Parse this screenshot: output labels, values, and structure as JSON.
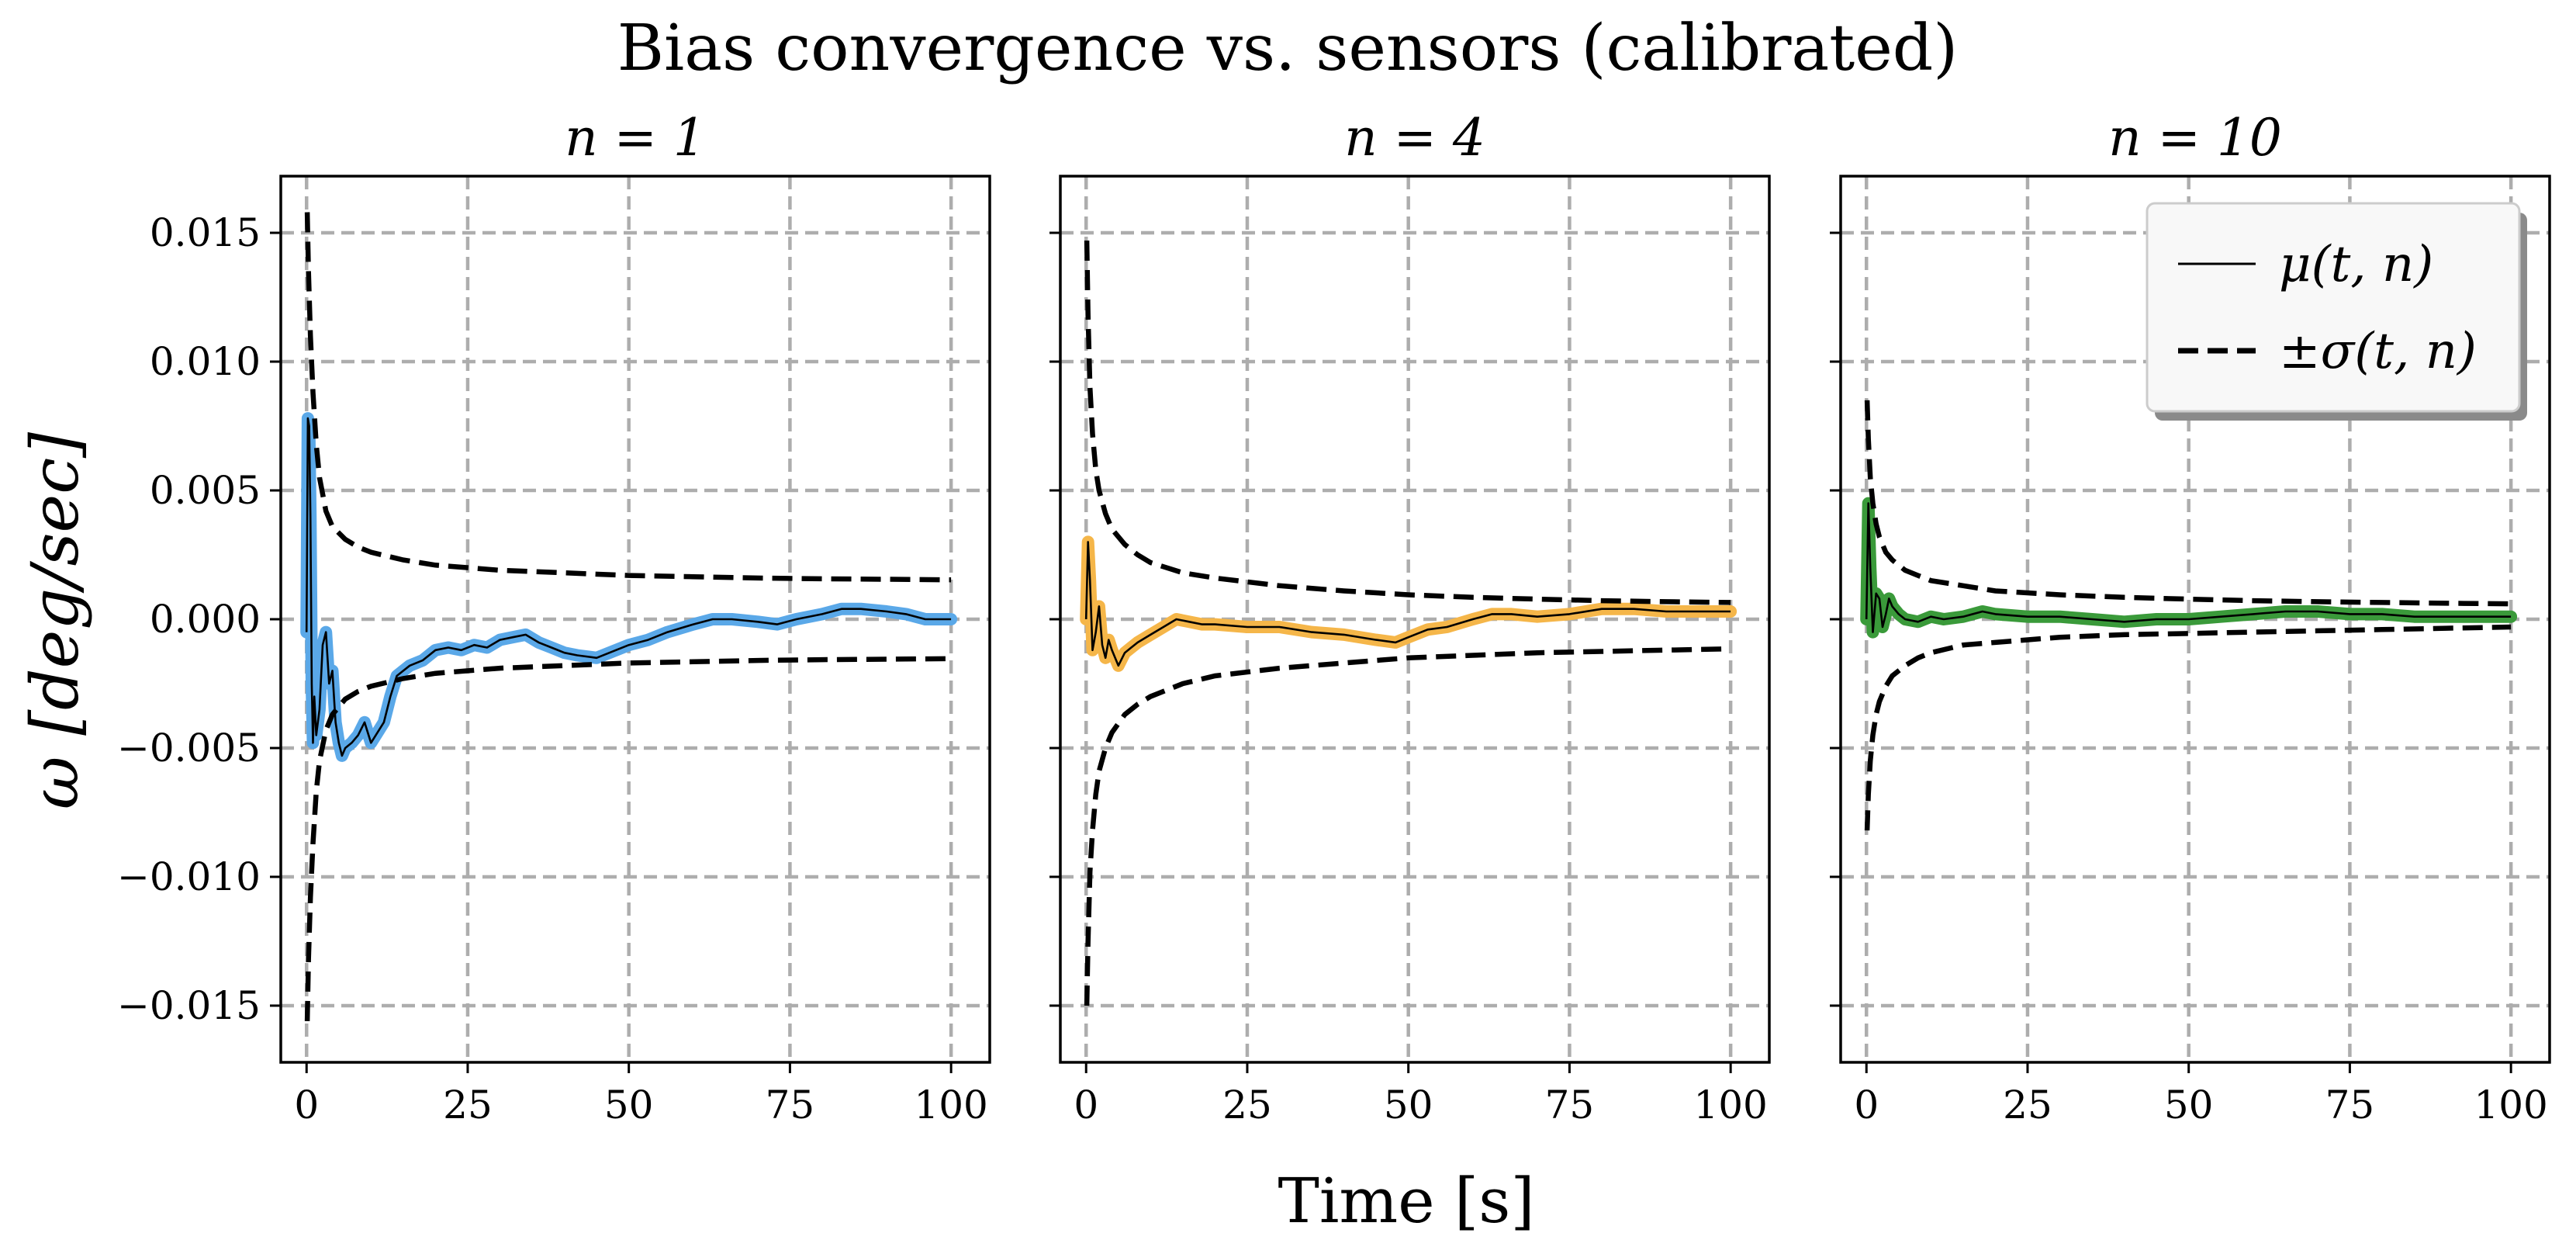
{
  "title": "Bias convergence vs. sensors (calibrated)",
  "xlabel": "Time [s]",
  "ylabel": "ω [deg/sec]",
  "legend": {
    "placement": "top-right of third panel",
    "entries": [
      {
        "label": "μ(t, n)",
        "style": "solid"
      },
      {
        "label": "±σ(t, n)",
        "style": "dashed"
      }
    ]
  },
  "x_tick_labels": [
    "0",
    "25",
    "50",
    "75",
    "100"
  ],
  "y_tick_labels": [
    "0.015",
    "0.010",
    "0.005",
    "0.000",
    "−0.005",
    "−0.010",
    "−0.015"
  ],
  "chart_data": [
    {
      "type": "line",
      "title": "n = 1",
      "color": "#5aa8e8",
      "xlim": [
        -4,
        106
      ],
      "ylim": [
        -0.0172,
        0.0172
      ],
      "x_ticks": [
        0,
        25,
        50,
        75,
        100
      ],
      "y_ticks": [
        0.015,
        0.01,
        0.005,
        0.0,
        -0.005,
        -0.01,
        -0.015
      ],
      "grid": true,
      "sigma": {
        "x": [
          0.1,
          0.3,
          0.6,
          1,
          1.5,
          2,
          3,
          4,
          6,
          8,
          10,
          15,
          20,
          30,
          40,
          50,
          60,
          70,
          80,
          90,
          100
        ],
        "upper": [
          0.0158,
          0.0135,
          0.011,
          0.0088,
          0.0068,
          0.0055,
          0.0042,
          0.0036,
          0.0031,
          0.0028,
          0.0026,
          0.0023,
          0.0021,
          0.0019,
          0.0018,
          0.0017,
          0.00165,
          0.0016,
          0.00157,
          0.00155,
          0.00153
        ],
        "lower": [
          -0.0156,
          -0.0132,
          -0.0108,
          -0.0087,
          -0.0067,
          -0.0055,
          -0.0043,
          -0.0037,
          -0.0031,
          -0.0028,
          -0.0026,
          -0.0023,
          -0.0021,
          -0.0019,
          -0.0018,
          -0.0017,
          -0.00165,
          -0.0016,
          -0.00157,
          -0.00155,
          -0.00153
        ]
      },
      "mean": {
        "x": [
          0,
          0.2,
          0.4,
          0.6,
          0.8,
          1.0,
          1.2,
          1.5,
          2.0,
          2.5,
          3.0,
          3.5,
          4.0,
          4.5,
          5.0,
          5.5,
          6.0,
          7.0,
          8.0,
          9.0,
          10.0,
          11.0,
          12.0,
          13.0,
          14.0,
          15.0,
          16.0,
          18.0,
          20.0,
          22.0,
          24.0,
          26.0,
          28.0,
          30.0,
          32.0,
          34.0,
          36.0,
          38.0,
          40.0,
          42.0,
          45.0,
          48.0,
          50.0,
          53.0,
          56.0,
          60.0,
          63.0,
          66.0,
          70.0,
          73.0,
          76.0,
          80.0,
          83.0,
          86.0,
          90.0,
          93.0,
          96.0,
          100.0
        ],
        "y": [
          -0.0005,
          0.0078,
          0.0075,
          0.004,
          -0.0025,
          -0.0048,
          -0.003,
          -0.0045,
          -0.0035,
          -0.001,
          -0.0005,
          -0.0025,
          -0.002,
          -0.004,
          -0.0048,
          -0.0053,
          -0.005,
          -0.0048,
          -0.0045,
          -0.004,
          -0.0048,
          -0.0044,
          -0.004,
          -0.003,
          -0.0022,
          -0.002,
          -0.0018,
          -0.0016,
          -0.0012,
          -0.0011,
          -0.0012,
          -0.001,
          -0.0011,
          -0.0008,
          -0.0007,
          -0.0006,
          -0.0009,
          -0.0011,
          -0.0013,
          -0.0014,
          -0.0015,
          -0.0012,
          -0.001,
          -0.0008,
          -0.0005,
          -0.0002,
          0.0,
          0.0,
          -0.0001,
          -0.0002,
          0.0,
          0.0002,
          0.0004,
          0.0004,
          0.0003,
          0.0002,
          0.0,
          0.0
        ]
      }
    },
    {
      "type": "line",
      "title": "n = 4",
      "color": "#f5b649",
      "xlim": [
        -4,
        106
      ],
      "ylim": [
        -0.0172,
        0.0172
      ],
      "x_ticks": [
        0,
        25,
        50,
        75,
        100
      ],
      "y_ticks": [
        0.015,
        0.01,
        0.005,
        0.0,
        -0.005,
        -0.01,
        -0.015
      ],
      "grid": true,
      "sigma": {
        "x": [
          0.1,
          0.3,
          0.6,
          1,
          1.5,
          2,
          3,
          4,
          6,
          8,
          10,
          15,
          20,
          30,
          40,
          50,
          60,
          70,
          80,
          90,
          100
        ],
        "upper": [
          0.0147,
          0.0118,
          0.009,
          0.0072,
          0.0058,
          0.005,
          0.0041,
          0.0035,
          0.0029,
          0.0025,
          0.0022,
          0.0018,
          0.0016,
          0.0013,
          0.0011,
          0.00095,
          0.00085,
          0.00078,
          0.00072,
          0.00068,
          0.00065
        ],
        "lower": [
          -0.015,
          -0.0125,
          -0.0098,
          -0.0082,
          -0.0068,
          -0.0059,
          -0.005,
          -0.0044,
          -0.0037,
          -0.0033,
          -0.003,
          -0.0025,
          -0.0022,
          -0.0019,
          -0.0017,
          -0.0015,
          -0.0014,
          -0.0013,
          -0.00125,
          -0.0012,
          -0.00115
        ]
      },
      "mean": {
        "x": [
          0,
          0.3,
          0.6,
          1.0,
          1.5,
          2.0,
          2.5,
          3.0,
          3.5,
          4.0,
          5.0,
          6.0,
          7.0,
          8.0,
          10.0,
          12.0,
          14.0,
          16.0,
          18.0,
          20.0,
          25.0,
          30.0,
          35.0,
          40.0,
          45.0,
          48.0,
          50.0,
          53.0,
          56.0,
          60.0,
          63.0,
          66.0,
          70.0,
          75.0,
          80.0,
          85.0,
          90.0,
          95.0,
          100.0
        ],
        "y": [
          0.0,
          0.003,
          0.0015,
          -0.0012,
          -0.0005,
          0.0005,
          -0.001,
          -0.0015,
          -0.0008,
          -0.0012,
          -0.0018,
          -0.0013,
          -0.0011,
          -0.0009,
          -0.0006,
          -0.0003,
          0.0,
          -0.0001,
          -0.0002,
          -0.0002,
          -0.0003,
          -0.0003,
          -0.0005,
          -0.0006,
          -0.0008,
          -0.0009,
          -0.0007,
          -0.0004,
          -0.0003,
          0.0,
          0.0002,
          0.0002,
          0.0001,
          0.0002,
          0.0004,
          0.0004,
          0.0003,
          0.0003,
          0.0003
        ]
      }
    },
    {
      "type": "line",
      "title": "n = 10",
      "color": "#3a9a3a",
      "xlim": [
        -4,
        106
      ],
      "ylim": [
        -0.0172,
        0.0172
      ],
      "x_ticks": [
        0,
        25,
        50,
        75,
        100
      ],
      "y_ticks": [
        0.015,
        0.01,
        0.005,
        0.0,
        -0.005,
        -0.01,
        -0.015
      ],
      "grid": true,
      "sigma": {
        "x": [
          0.1,
          0.3,
          0.6,
          1,
          1.5,
          2,
          3,
          4,
          6,
          8,
          10,
          15,
          20,
          30,
          40,
          50,
          60,
          70,
          80,
          90,
          100
        ],
        "upper": [
          0.0085,
          0.007,
          0.0055,
          0.0045,
          0.0037,
          0.0032,
          0.0026,
          0.0023,
          0.0019,
          0.0017,
          0.0015,
          0.0013,
          0.0011,
          0.00095,
          0.00085,
          0.00078,
          0.00072,
          0.00068,
          0.00065,
          0.00062,
          0.0006
        ],
        "lower": [
          -0.0082,
          -0.0068,
          -0.0055,
          -0.0045,
          -0.0037,
          -0.0032,
          -0.0026,
          -0.0022,
          -0.0018,
          -0.0015,
          -0.0013,
          -0.001,
          -0.0009,
          -0.0007,
          -0.0006,
          -0.00055,
          -0.0005,
          -0.00045,
          -0.0004,
          -0.00035,
          -0.0003
        ]
      },
      "mean": {
        "x": [
          0,
          0.3,
          0.6,
          1.0,
          1.5,
          2.0,
          2.5,
          3.0,
          3.5,
          4.0,
          5.0,
          6.0,
          8.0,
          10.0,
          12.0,
          15.0,
          18.0,
          20.0,
          25.0,
          30.0,
          35.0,
          40.0,
          45.0,
          50.0,
          55.0,
          60.0,
          65.0,
          70.0,
          75.0,
          80.0,
          85.0,
          90.0,
          95.0,
          100.0
        ],
        "y": [
          0.0,
          0.0045,
          0.002,
          -0.0005,
          0.001,
          0.0008,
          -0.0003,
          0.0002,
          0.0008,
          0.0005,
          0.0002,
          0.0,
          -0.0001,
          0.0001,
          0.0,
          0.0001,
          0.0003,
          0.0002,
          0.0001,
          0.0001,
          0.0,
          -0.0001,
          0.0,
          0.0,
          0.0001,
          0.0002,
          0.0003,
          0.0003,
          0.0002,
          0.0002,
          0.0001,
          0.0001,
          0.0001,
          0.0001
        ]
      }
    }
  ]
}
